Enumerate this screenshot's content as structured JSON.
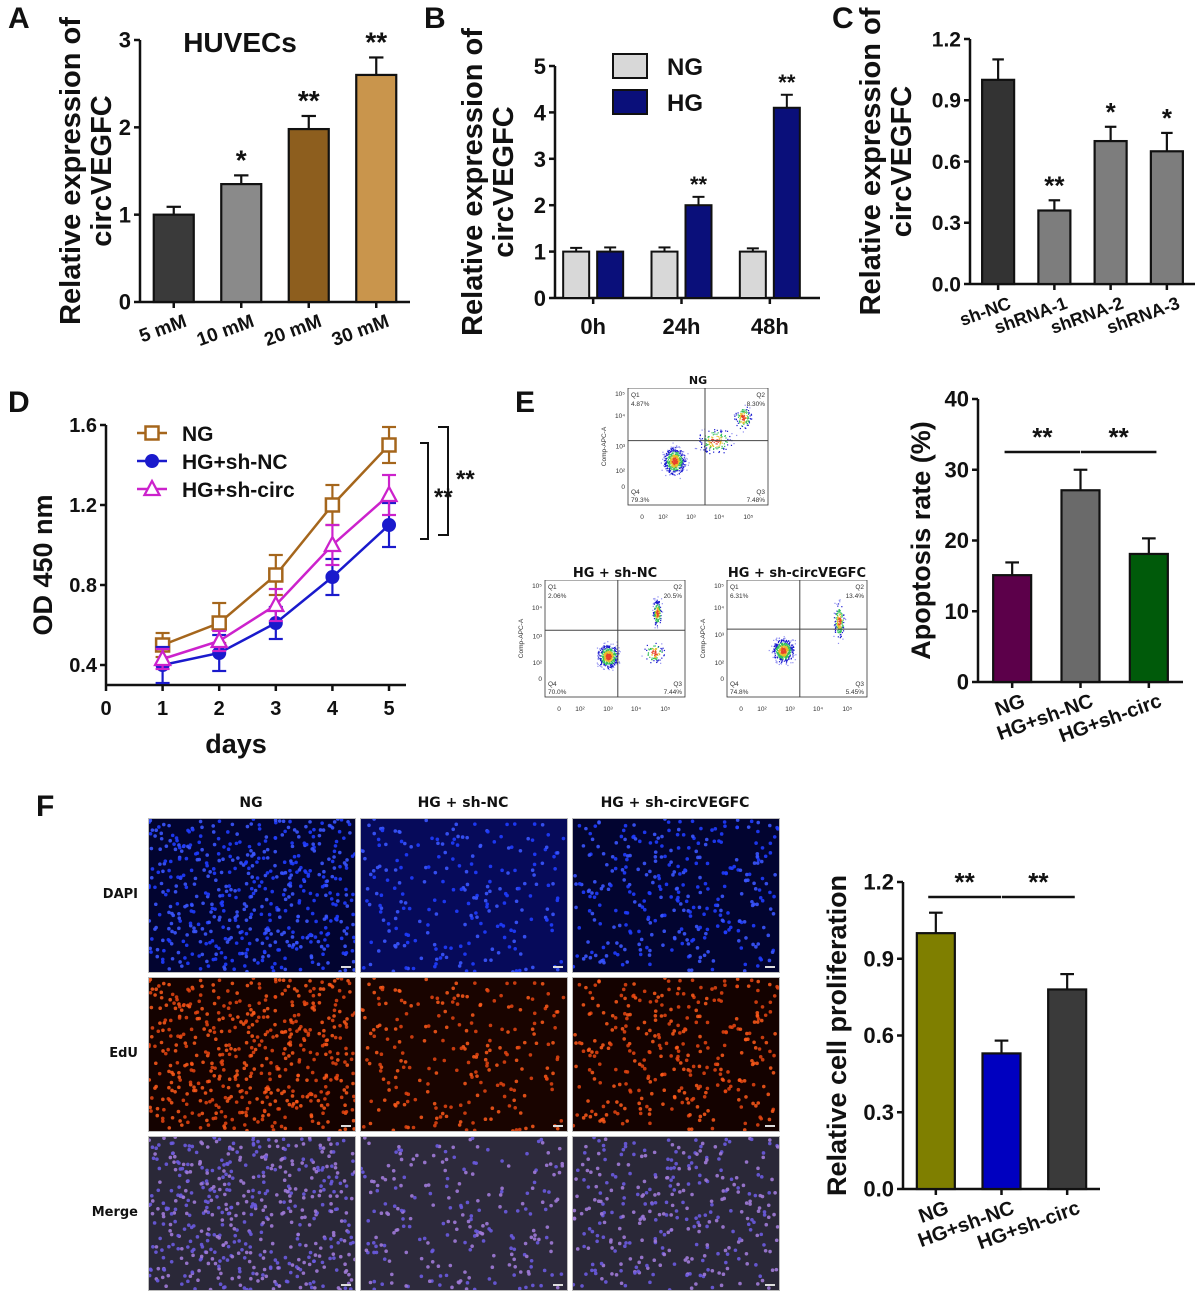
{
  "panel_labels": {
    "A": "A",
    "B": "B",
    "C": "C",
    "D": "D",
    "E": "E",
    "F": "F"
  },
  "chart_data": [
    {
      "id": "A",
      "type": "bar",
      "title": "HUVECs",
      "ylabel": "Relative expression of circVEGFC",
      "ylabel_lines": [
        "Relative expression of",
        "circVEGFC"
      ],
      "categories": [
        "5 mM",
        "10 mM",
        "20 mM",
        "30 mM"
      ],
      "values": [
        1.0,
        1.35,
        1.98,
        2.6
      ],
      "errors": [
        0.09,
        0.1,
        0.15,
        0.2
      ],
      "significance": [
        "",
        "*",
        "**",
        "**"
      ],
      "colors": [
        "#3a3a3a",
        "#8a8a8a",
        "#8d5e1e",
        "#c9954c"
      ],
      "ylim": [
        0,
        3
      ],
      "yticks": [
        "0",
        "1",
        "2",
        "3"
      ]
    },
    {
      "id": "B",
      "type": "bar",
      "ylabel": "Relative expression of circVEGFC",
      "ylabel_lines": [
        "Relative expression of",
        "circVEGFC"
      ],
      "categories": [
        "0h",
        "24h",
        "48h"
      ],
      "series": [
        {
          "name": "NG",
          "values": [
            1.0,
            1.0,
            1.0
          ],
          "errors": [
            0.08,
            0.09,
            0.07
          ],
          "color": "#d8d8d8",
          "significance": [
            "",
            "",
            ""
          ]
        },
        {
          "name": "HG",
          "values": [
            1.0,
            2.0,
            4.1
          ],
          "errors": [
            0.09,
            0.18,
            0.28
          ],
          "color": "#0a0f7a",
          "significance": [
            "",
            "**",
            "**"
          ]
        }
      ],
      "ylim": [
        0,
        5
      ],
      "yticks": [
        "0",
        "1",
        "2",
        "3",
        "4",
        "5"
      ],
      "legend_position": "top-left"
    },
    {
      "id": "C",
      "type": "bar",
      "ylabel": "Relative expression of circVEGFC",
      "ylabel_lines": [
        "Relative expression of",
        "circVEGFC"
      ],
      "categories": [
        "sh-NC",
        "shRNA-1",
        "shRNA-2",
        "shRNA-3"
      ],
      "values": [
        1.0,
        0.36,
        0.7,
        0.65
      ],
      "errors": [
        0.1,
        0.05,
        0.07,
        0.09
      ],
      "significance": [
        "",
        "**",
        "*",
        "*"
      ],
      "colors": [
        "#333333",
        "#7d7d7d",
        "#7d7d7d",
        "#7d7d7d"
      ],
      "ylim": [
        0,
        1.2
      ],
      "yticks": [
        "0.0",
        "0.3",
        "0.6",
        "0.9",
        "1.2"
      ]
    },
    {
      "id": "D",
      "type": "line",
      "xlabel": "days",
      "ylabel": "OD 450 nm",
      "x": [
        1,
        2,
        3,
        4,
        5
      ],
      "xlim": [
        0,
        5.3
      ],
      "xticks": [
        "0",
        "1",
        "2",
        "3",
        "4",
        "5"
      ],
      "ylim": [
        0.3,
        1.6
      ],
      "yticks": [
        "0.4",
        "0.8",
        "1.2",
        "1.6"
      ],
      "series": [
        {
          "name": "NG",
          "values": [
            0.5,
            0.61,
            0.85,
            1.2,
            1.5
          ],
          "errors": [
            0.06,
            0.1,
            0.1,
            0.1,
            0.09
          ],
          "color": "#a5661c",
          "marker": "square-open"
        },
        {
          "name": "HG+sh-NC",
          "values": [
            0.4,
            0.46,
            0.61,
            0.84,
            1.1
          ],
          "errors": [
            0.09,
            0.09,
            0.08,
            0.09,
            0.11
          ],
          "color": "#1a1acc",
          "marker": "circle-filled"
        },
        {
          "name": "HG+sh-circ",
          "values": [
            0.43,
            0.52,
            0.7,
            1.0,
            1.25
          ],
          "errors": [
            0.05,
            0.05,
            0.08,
            0.1,
            0.1
          ],
          "color": "#cc22cc",
          "marker": "triangle-open"
        }
      ],
      "legend_position": "top-left",
      "annotations": [
        "**",
        "**"
      ]
    },
    {
      "id": "E-bar",
      "type": "bar",
      "ylabel": "Apoptosis rate (%)",
      "categories": [
        "NG",
        "HG+sh-NC",
        "HG+sh-circ"
      ],
      "values": [
        15.1,
        27.1,
        18.1
      ],
      "errors": [
        1.8,
        2.9,
        2.2
      ],
      "colors": [
        "#5c004a",
        "#6a6a6a",
        "#005a0a"
      ],
      "ylim": [
        0,
        40
      ],
      "yticks": [
        "0",
        "10",
        "20",
        "30",
        "40"
      ],
      "brackets": [
        {
          "from": 0,
          "to": 1,
          "label": "**"
        },
        {
          "from": 1,
          "to": 2,
          "label": "**"
        }
      ]
    },
    {
      "id": "F-bar",
      "type": "bar",
      "ylabel": "Relative cell proliferation",
      "categories": [
        "NG",
        "HG+sh-NC",
        "HG+sh-circ"
      ],
      "values": [
        1.0,
        0.53,
        0.78
      ],
      "errors": [
        0.08,
        0.05,
        0.06
      ],
      "colors": [
        "#7f7f00",
        "#0000c0",
        "#3a3a3a"
      ],
      "ylim": [
        0,
        1.2
      ],
      "yticks": [
        "0.0",
        "0.3",
        "0.6",
        "0.9",
        "1.2"
      ],
      "brackets": [
        {
          "from": 0,
          "to": 1,
          "label": "**"
        },
        {
          "from": 1,
          "to": 2,
          "label": "**"
        }
      ]
    }
  ],
  "flow": {
    "ylabel": "Comp-APC-A",
    "xticks": [
      "0",
      "10²",
      "10³",
      "10⁴",
      "10⁵"
    ],
    "yticks": [
      "0",
      "10²",
      "10³",
      "10⁴",
      "10⁵"
    ],
    "plots": [
      {
        "title": "NG",
        "q1": "Q1",
        "q1v": "4.87%",
        "q2": "Q2",
        "q2v": "8.30%",
        "q3": "Q3",
        "q3v": "7.48%",
        "q4": "Q4",
        "q4v": "79.3%"
      },
      {
        "title": "HG + sh-NC",
        "q1": "Q1",
        "q1v": "2.06%",
        "q2": "Q2",
        "q2v": "20.5%",
        "q3": "Q3",
        "q3v": "7.44%",
        "q4": "Q4",
        "q4v": "70.0%"
      },
      {
        "title": "HG + sh-circVEGFC",
        "q1": "Q1",
        "q1v": "6.31%",
        "q2": "Q2",
        "q2v": "13.4%",
        "q3": "Q3",
        "q3v": "5.45%",
        "q4": "Q4",
        "q4v": "74.8%"
      }
    ]
  },
  "microscopy": {
    "columns": [
      "NG",
      "HG + sh-NC",
      "HG + sh-circVEGFC"
    ],
    "rows": [
      "DAPI",
      "EdU",
      "Merge"
    ]
  }
}
